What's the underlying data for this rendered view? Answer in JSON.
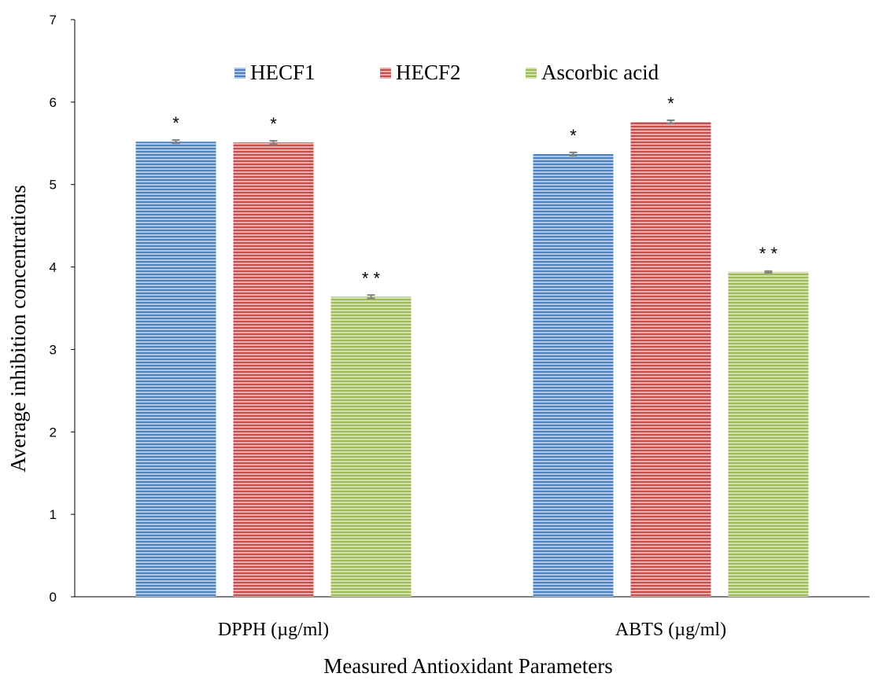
{
  "chart_data": {
    "type": "bar",
    "title": "",
    "xlabel": "Measured Antioxidant Parameters",
    "ylabel": "Average inhibition concentrations",
    "ylim": [
      0,
      7
    ],
    "yticks": [
      0,
      1,
      2,
      3,
      4,
      5,
      6,
      7
    ],
    "categories": [
      "DPPH (µg/ml)",
      "ABTS (µg/ml)"
    ],
    "series": [
      {
        "name": "HECF1",
        "values": [
          5.52,
          5.37
        ],
        "errors": [
          0.02,
          0.02
        ],
        "significance": [
          "*",
          "*"
        ],
        "color": "#4f81bd"
      },
      {
        "name": "HECF2",
        "values": [
          5.51,
          5.76
        ],
        "errors": [
          0.02,
          0.02
        ],
        "significance": [
          "*",
          "*"
        ],
        "color": "#c0504d"
      },
      {
        "name": "Ascorbic acid",
        "values": [
          3.64,
          3.94
        ],
        "errors": [
          0.02,
          0.01
        ],
        "significance": [
          "**",
          "**"
        ],
        "color": "#9bbb59"
      }
    ],
    "grid": false,
    "legend_position": "top"
  }
}
